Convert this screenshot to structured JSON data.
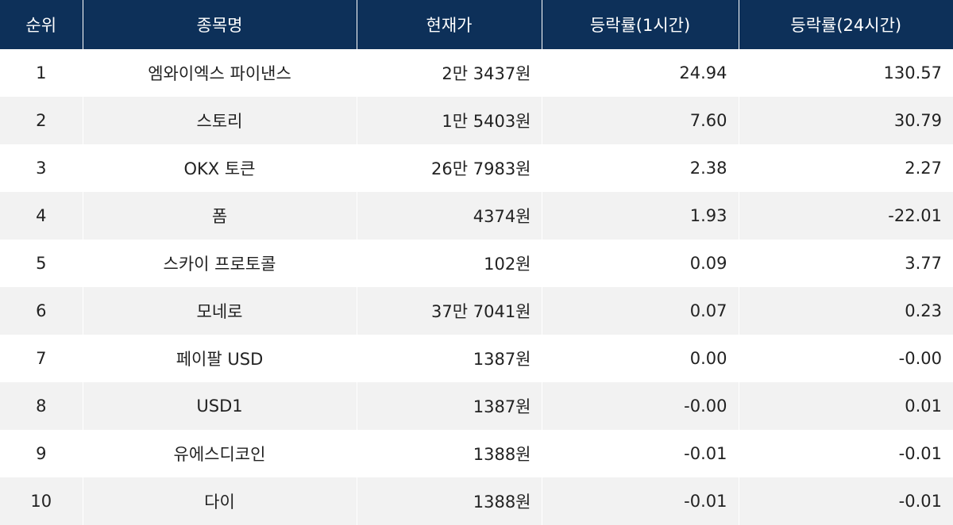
{
  "table": {
    "headers": {
      "rank": "순위",
      "name": "종목명",
      "price": "현재가",
      "change_1h": "등락률(1시간)",
      "change_24h": "등락률(24시간)"
    },
    "rows": [
      {
        "rank": "1",
        "name": "엠와이엑스 파이낸스",
        "price": "2만 3437원",
        "change_1h": "24.94",
        "change_24h": "130.57"
      },
      {
        "rank": "2",
        "name": "스토리",
        "price": "1만 5403원",
        "change_1h": "7.60",
        "change_24h": "30.79"
      },
      {
        "rank": "3",
        "name": "OKX 토큰",
        "price": "26만 7983원",
        "change_1h": "2.38",
        "change_24h": "2.27"
      },
      {
        "rank": "4",
        "name": "폼",
        "price": "4374원",
        "change_1h": "1.93",
        "change_24h": "-22.01"
      },
      {
        "rank": "5",
        "name": "스카이 프로토콜",
        "price": "102원",
        "change_1h": "0.09",
        "change_24h": "3.77"
      },
      {
        "rank": "6",
        "name": "모네로",
        "price": "37만 7041원",
        "change_1h": "0.07",
        "change_24h": "0.23"
      },
      {
        "rank": "7",
        "name": "페이팔 USD",
        "price": "1387원",
        "change_1h": "0.00",
        "change_24h": "-0.00"
      },
      {
        "rank": "8",
        "name": "USD1",
        "price": "1387원",
        "change_1h": "-0.00",
        "change_24h": "0.01"
      },
      {
        "rank": "9",
        "name": "유에스디코인",
        "price": "1388원",
        "change_1h": "-0.01",
        "change_24h": "-0.01"
      },
      {
        "rank": "10",
        "name": "다이",
        "price": "1388원",
        "change_1h": "-0.01",
        "change_24h": "-0.01"
      }
    ]
  },
  "colors": {
    "header_bg": "#0d3059",
    "header_text": "#ffffff",
    "row_alt_bg": "#f2f2f2",
    "row_bg": "#ffffff"
  }
}
